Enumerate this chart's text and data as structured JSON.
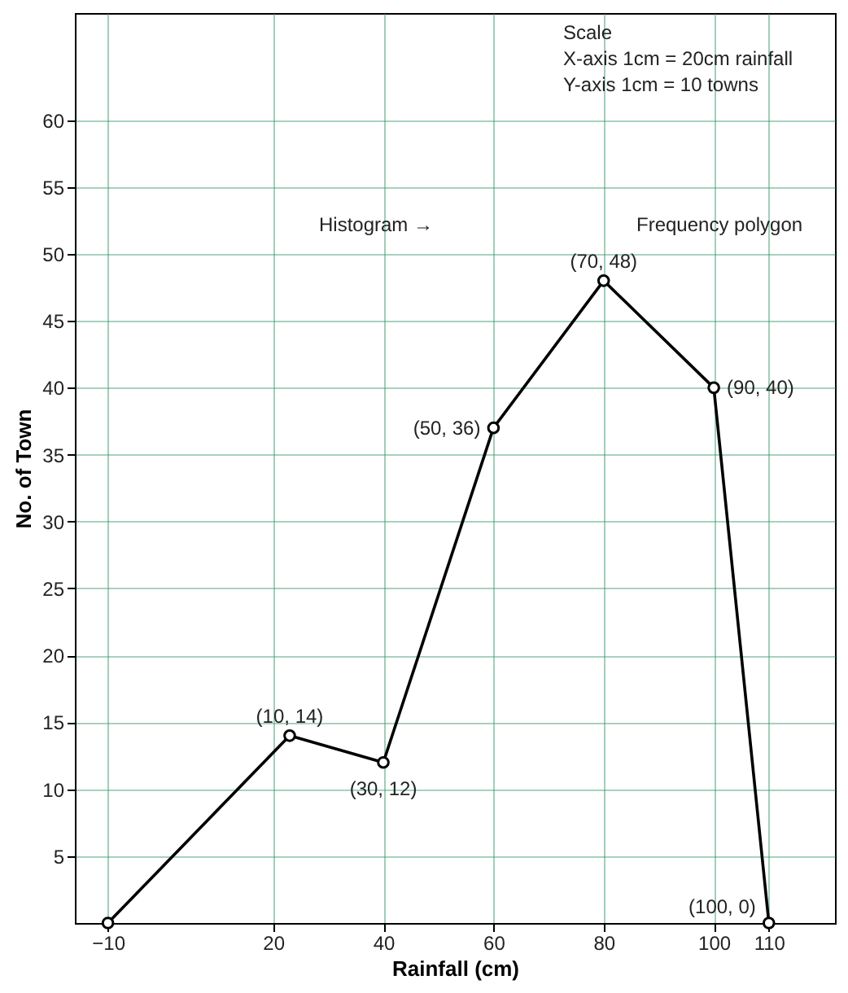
{
  "chart_data": {
    "type": "line",
    "xlabel": "Rainfall (cm)",
    "ylabel": "No. of Town",
    "x": [
      -10,
      23,
      40,
      60,
      80,
      100,
      110
    ],
    "series": [
      {
        "color": "#000000",
        "values": [
          0,
          14,
          12,
          37,
          48,
          40,
          0
        ]
      }
    ],
    "xlim": [
      -16,
      122
    ],
    "ylim": [
      0,
      68
    ],
    "xticks": [
      -10,
      20,
      40,
      60,
      80,
      100,
      110
    ],
    "yticks": [
      5,
      10,
      15,
      20,
      25,
      30,
      35,
      40,
      45,
      50,
      55,
      60
    ],
    "grid": true,
    "marker": "circle",
    "line_style": "solid",
    "annotations": [
      {
        "text": "(10, 14)",
        "x": 23,
        "y": 14
      },
      {
        "text": "(30, 12)",
        "x": 40,
        "y": 12
      },
      {
        "text": "(50, 36)",
        "x": 60,
        "y": 37
      },
      {
        "text": "(70, 48)",
        "x": 80,
        "y": 48
      },
      {
        "text": "(90, 40)",
        "x": 100,
        "y": 40
      },
      {
        "text": "(100, 0)",
        "x": 110,
        "y": 0
      },
      "Scale",
      "X-axis   1cm  =  20cm  rainfall",
      "Y-axis   1cm  =   10 towns",
      "Histogram  →",
      "Frequency polygon"
    ]
  }
}
